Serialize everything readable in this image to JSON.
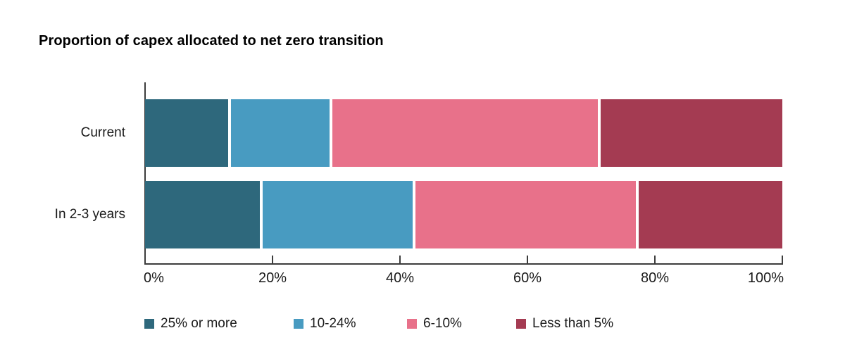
{
  "chart_data": {
    "type": "bar",
    "variant": "horizontal-stacked",
    "title": "Proportion of capex allocated to net zero transition",
    "categories": [
      "Current",
      "In 2-3 years"
    ],
    "series": [
      {
        "name": "25% or more",
        "color": "#2E687C",
        "values": [
          13,
          18
        ]
      },
      {
        "name": "10-24%",
        "color": "#489BC1",
        "values": [
          16,
          24
        ]
      },
      {
        "name": "6-10%",
        "color": "#E8718A",
        "values": [
          42,
          35
        ]
      },
      {
        "name": "Less than 5%",
        "color": "#A43B52",
        "values": [
          29,
          23
        ]
      }
    ],
    "x_axis": {
      "xlim": [
        0,
        100
      ],
      "ticks": [
        0,
        20,
        40,
        60,
        80,
        100
      ],
      "tick_labels": [
        "0%",
        "20%",
        "40%",
        "60%",
        "80%",
        "100%"
      ]
    },
    "legend_position": "bottom",
    "grid": false
  },
  "styles": {
    "axis_color": "#3C3C3C",
    "text_color": "#1A1A1A",
    "title_color": "#000000",
    "background": "#FFFFFF"
  }
}
